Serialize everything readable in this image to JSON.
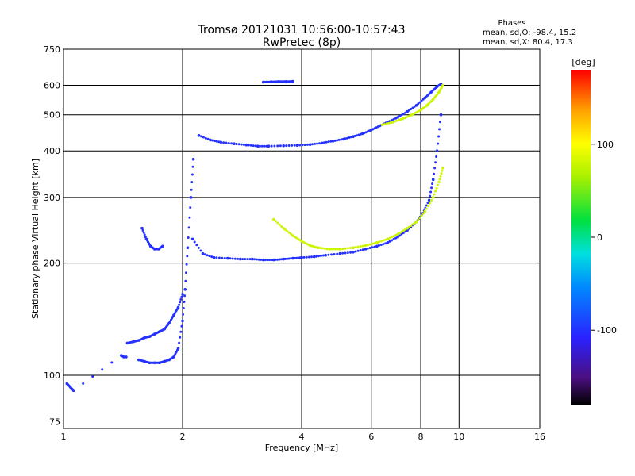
{
  "chart_data": {
    "type": "scatter",
    "title": "Tromsø 20121031 10:56:00-10:57:43",
    "subtitle": "RwPretec (8p)",
    "xlabel": "Frequency [MHz]",
    "ylabel": "Stationary phase Virtual Height [km]",
    "x_scale": "log",
    "y_scale": "log",
    "xlim": [
      1,
      16
    ],
    "ylim": [
      72,
      750
    ],
    "x_ticks": [
      1,
      2,
      4,
      6,
      8,
      10,
      16
    ],
    "x_tick_labels": [
      "1",
      "2",
      "4",
      "6",
      "8",
      "10",
      "16"
    ],
    "y_ticks": [
      75,
      100,
      200,
      300,
      400,
      500,
      600,
      750
    ],
    "y_tick_labels": [
      "75",
      "100",
      "200",
      "300",
      "400",
      "500",
      "600",
      "750"
    ],
    "grid_x": [
      2,
      4,
      6,
      8,
      10
    ],
    "grid_y": [
      100,
      200,
      300,
      400,
      500,
      600
    ],
    "grid": true,
    "phase_stats": {
      "heading": "Phases",
      "line_o": "mean, sd,O: -98.4, 15.2",
      "line_x": "mean, sd,X:  80.4, 17.3"
    },
    "colorbar": {
      "label": "[deg]",
      "range": [
        -180,
        180
      ],
      "ticks": [
        100,
        0,
        -100
      ],
      "tick_labels": [
        "100",
        "0",
        "-100"
      ]
    },
    "traces": [
      {
        "name": "",
        "phase": -100,
        "x": [
          2.12,
          2.25,
          2.4,
          2.6,
          2.8,
          3.0,
          3.2,
          3.4,
          3.6,
          3.8,
          4.0,
          4.3,
          4.6,
          5.0,
          5.4,
          5.8,
          6.2,
          6.6,
          7.0,
          7.4,
          7.8,
          8.1,
          8.4,
          8.6,
          8.8,
          9.0
        ],
        "y": [
          232,
          212,
          207,
          206,
          205,
          205,
          204,
          204,
          205,
          206,
          207,
          208,
          210,
          212,
          214,
          218,
          222,
          227,
          235,
          245,
          258,
          272,
          295,
          335,
          400,
          500
        ]
      },
      {
        "name": "",
        "phase": -100,
        "x": [
          2.2,
          2.35,
          2.5,
          2.7,
          2.9,
          3.1,
          3.3,
          3.6,
          3.9,
          4.2,
          4.5,
          4.8,
          5.1,
          5.4,
          5.7,
          6.0,
          6.3,
          6.6,
          7.0,
          7.4,
          7.8,
          8.2,
          8.5,
          8.8,
          9.0
        ],
        "y": [
          440,
          428,
          422,
          418,
          415,
          412,
          412,
          413,
          414,
          416,
          420,
          425,
          430,
          437,
          445,
          455,
          467,
          478,
          492,
          510,
          530,
          555,
          575,
          595,
          605
        ]
      },
      {
        "name": "",
        "phase": 80,
        "x": [
          3.4,
          3.6,
          3.8,
          4.0,
          4.2,
          4.4,
          4.7,
          5.0,
          5.4,
          5.8,
          6.2,
          6.6,
          7.0,
          7.4,
          7.8,
          8.2,
          8.6,
          8.9,
          9.1
        ],
        "y": [
          262,
          248,
          237,
          229,
          223,
          220,
          218,
          218,
          220,
          223,
          227,
          232,
          239,
          248,
          258,
          275,
          300,
          330,
          360
        ]
      },
      {
        "name": "",
        "phase": 80,
        "x": [
          6.4,
          6.8,
          7.2,
          7.6,
          8.0,
          8.3,
          8.6,
          8.9,
          9.1
        ],
        "y": [
          470,
          478,
          488,
          500,
          515,
          530,
          550,
          575,
          600
        ]
      },
      {
        "name": "",
        "phase": -100,
        "x": [
          1.55,
          1.6,
          1.65,
          1.7,
          1.75,
          1.8,
          1.85,
          1.9,
          1.95,
          2.0,
          2.03,
          2.06,
          2.1,
          2.13
        ],
        "y": [
          110,
          109,
          108,
          108,
          108,
          109,
          110,
          112,
          118,
          140,
          170,
          220,
          300,
          380
        ]
      },
      {
        "name": "",
        "phase": -100,
        "x": [
          1.45,
          1.5,
          1.55,
          1.6,
          1.65,
          1.7,
          1.75,
          1.8,
          1.85,
          1.9,
          1.95,
          2.0
        ],
        "y": [
          122,
          123,
          124,
          126,
          127,
          129,
          131,
          133,
          138,
          145,
          152,
          165
        ]
      },
      {
        "name": "",
        "phase": -100,
        "x": [
          1.58,
          1.62,
          1.66,
          1.7,
          1.74,
          1.78
        ],
        "y": [
          248,
          232,
          222,
          218,
          218,
          222
        ]
      },
      {
        "name": "",
        "phase": -100,
        "x": [
          3.2,
          3.35,
          3.5,
          3.65,
          3.8
        ],
        "y": [
          612,
          613,
          614,
          614,
          615
        ]
      },
      {
        "name": "",
        "phase": -100,
        "x": [
          1.02,
          1.04,
          1.06,
          1.4,
          1.42,
          1.44
        ],
        "y": [
          95,
          93,
          91,
          113,
          112,
          112
        ]
      }
    ]
  }
}
